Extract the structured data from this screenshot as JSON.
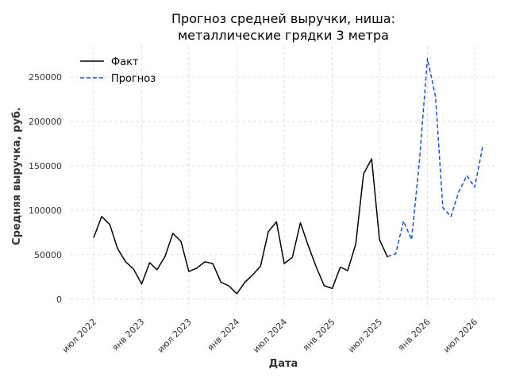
{
  "chart_data": {
    "type": "line",
    "title_lines": [
      "Прогноз средней выручки, ниша:",
      "металлические грядки 3 метра"
    ],
    "xlabel": "Дата",
    "ylabel": "Средняя выручка, руб.",
    "ylim": [
      -10000,
      285000
    ],
    "yticks": [
      0,
      50000,
      100000,
      150000,
      200000,
      250000
    ],
    "xlim": [
      "2022-04-01",
      "2026-09-15"
    ],
    "xticks": [
      {
        "date": "2022-07-01",
        "label": "июл 2022"
      },
      {
        "date": "2023-01-01",
        "label": "янв 2023"
      },
      {
        "date": "2023-07-01",
        "label": "июл 2023"
      },
      {
        "date": "2024-01-01",
        "label": "янв 2024"
      },
      {
        "date": "2024-07-01",
        "label": "июл 2024"
      },
      {
        "date": "2025-01-01",
        "label": "янв 2025"
      },
      {
        "date": "2025-07-01",
        "label": "июл 2025"
      },
      {
        "date": "2026-01-01",
        "label": "янв 2026"
      },
      {
        "date": "2026-07-01",
        "label": "июл 2026"
      }
    ],
    "grid": true,
    "legend_position": "top-left",
    "series": [
      {
        "name": "Факт",
        "color": "#000000",
        "style": "solid",
        "points": [
          [
            "2022-07-01",
            69000
          ],
          [
            "2022-08-01",
            93000
          ],
          [
            "2022-09-01",
            84000
          ],
          [
            "2022-10-01",
            57000
          ],
          [
            "2022-11-01",
            42000
          ],
          [
            "2022-12-01",
            34000
          ],
          [
            "2023-01-01",
            17000
          ],
          [
            "2023-02-01",
            41000
          ],
          [
            "2023-03-01",
            33000
          ],
          [
            "2023-04-01",
            48000
          ],
          [
            "2023-05-01",
            74000
          ],
          [
            "2023-06-01",
            65000
          ],
          [
            "2023-07-01",
            31000
          ],
          [
            "2023-08-01",
            35000
          ],
          [
            "2023-09-01",
            42000
          ],
          [
            "2023-10-01",
            40000
          ],
          [
            "2023-11-01",
            19000
          ],
          [
            "2023-12-01",
            15000
          ],
          [
            "2024-01-01",
            6000
          ],
          [
            "2024-02-01",
            19000
          ],
          [
            "2024-03-01",
            27000
          ],
          [
            "2024-04-01",
            37000
          ],
          [
            "2024-05-01",
            76000
          ],
          [
            "2024-06-01",
            87000
          ],
          [
            "2024-07-01",
            40000
          ],
          [
            "2024-08-01",
            47000
          ],
          [
            "2024-09-01",
            86000
          ],
          [
            "2024-10-01",
            60000
          ],
          [
            "2024-11-01",
            36000
          ],
          [
            "2024-12-01",
            15000
          ],
          [
            "2025-01-01",
            12000
          ],
          [
            "2025-02-01",
            36000
          ],
          [
            "2025-03-01",
            32000
          ],
          [
            "2025-04-01",
            62000
          ],
          [
            "2025-05-01",
            141000
          ],
          [
            "2025-06-01",
            158000
          ],
          [
            "2025-07-01",
            67000
          ],
          [
            "2025-08-01",
            47000
          ]
        ]
      },
      {
        "name": "Прогноз",
        "color": "#1f4fd1",
        "style": "dashed",
        "points": [
          [
            "2025-08-01",
            48000
          ],
          [
            "2025-09-01",
            51000
          ],
          [
            "2025-10-01",
            88000
          ],
          [
            "2025-11-01",
            67000
          ],
          [
            "2025-12-01",
            155000
          ],
          [
            "2026-01-01",
            271000
          ],
          [
            "2026-02-01",
            228000
          ],
          [
            "2026-03-01",
            103000
          ],
          [
            "2026-04-01",
            93000
          ],
          [
            "2026-05-01",
            121000
          ],
          [
            "2026-06-01",
            139000
          ],
          [
            "2026-07-01",
            126000
          ],
          [
            "2026-08-01",
            172000
          ]
        ]
      }
    ]
  }
}
